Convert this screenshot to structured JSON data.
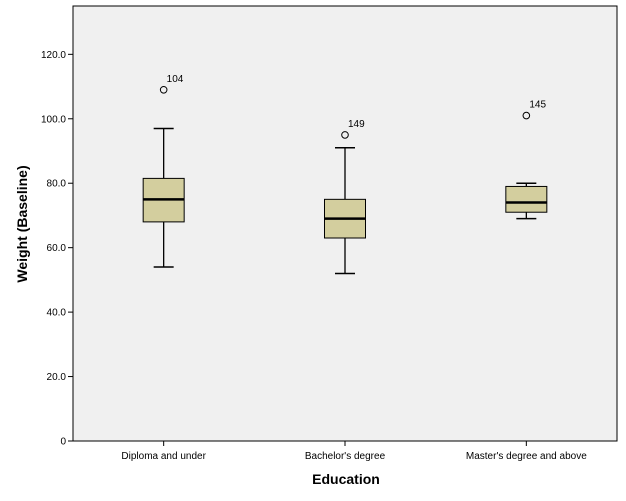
{
  "chart_data": {
    "type": "boxplot",
    "xlabel": "Education",
    "ylabel": "Weight (Baseline)",
    "ylim": [
      0,
      135
    ],
    "yticks": [
      "0",
      "20.0",
      "40.0",
      "60.0",
      "80.0",
      "100.0",
      "120.0"
    ],
    "ytick_values": [
      0,
      20,
      40,
      60,
      80,
      100,
      120
    ],
    "categories": [
      "Diploma and under",
      "Bachelor's degree",
      "Master's degree and above"
    ],
    "boxes": [
      {
        "category": "Diploma and under",
        "min": 54,
        "q1": 68,
        "median": 75,
        "q3": 81.5,
        "max": 97,
        "outliers": [
          {
            "value": 109,
            "label": "104"
          }
        ]
      },
      {
        "category": "Bachelor's degree",
        "min": 52,
        "q1": 63,
        "median": 69,
        "q3": 75,
        "max": 91,
        "outliers": [
          {
            "value": 95,
            "label": "149"
          }
        ]
      },
      {
        "category": "Master's degree and above",
        "min": 69,
        "q1": 71,
        "median": 74,
        "q3": 79,
        "max": 80,
        "outliers": [
          {
            "value": 101,
            "label": "145"
          }
        ]
      }
    ],
    "grid": false,
    "colors": {
      "plot_bg": "#f0f0f0",
      "box_fill": "#d3ce9e",
      "frame": "#000000"
    }
  }
}
